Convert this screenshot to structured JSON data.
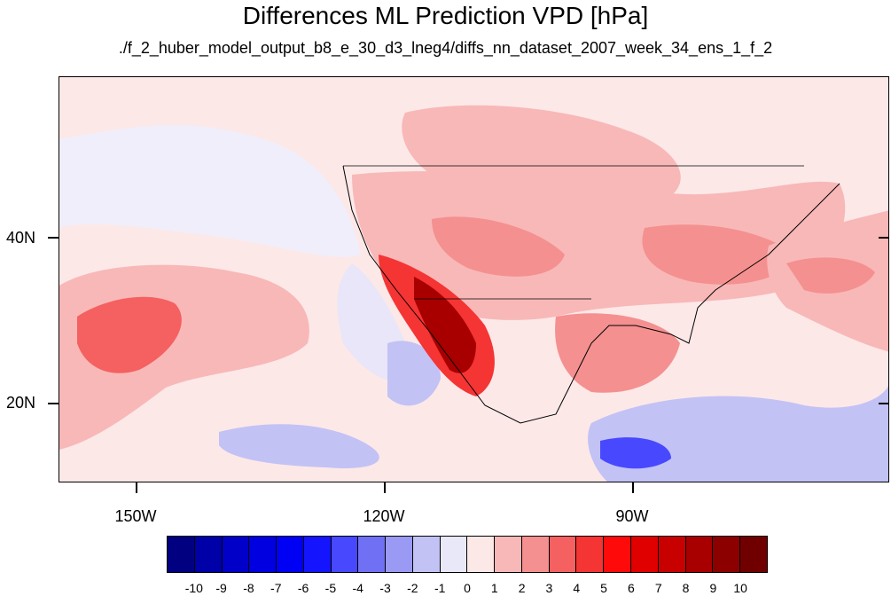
{
  "title": "Differences ML Prediction VPD [hPa]",
  "subtitle": "./f_2_huber_model_output_b8_e_30_d3_lneg4/diffs_nn_dataset_2007_week_34_ens_1_f_2",
  "lat_labels": [
    {
      "label": "40N",
      "lat": 40
    },
    {
      "label": "20N",
      "lat": 20
    }
  ],
  "lon_labels": [
    {
      "label": "150W",
      "lon": -150
    },
    {
      "label": "120W",
      "lon": -120
    },
    {
      "label": "90W",
      "lon": -90
    }
  ],
  "colorbar": {
    "labels": [
      "-10",
      "-9",
      "-8",
      "-7",
      "-6",
      "-5",
      "-4",
      "-3",
      "-2",
      "-1",
      "0",
      "1",
      "2",
      "3",
      "4",
      "5",
      "6",
      "7",
      "8",
      "9",
      "10"
    ],
    "colors": [
      "#000080",
      "#0000a8",
      "#0000c8",
      "#0000e0",
      "#0000f5",
      "#1414ff",
      "#4848ff",
      "#7070f5",
      "#9a9af5",
      "#c2c2f5",
      "#e8e8f8",
      "#fde8e8",
      "#f8b8b8",
      "#f59090",
      "#f56060",
      "#f53434",
      "#ff0a0a",
      "#e00000",
      "#c80000",
      "#a80000",
      "#8c0000",
      "#700000"
    ]
  }
}
